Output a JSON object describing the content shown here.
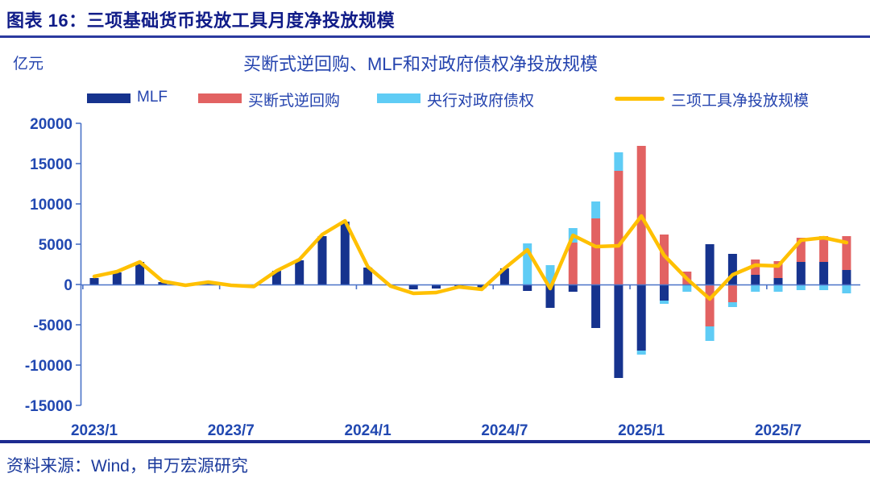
{
  "figure": {
    "title": "图表 16：三项基础货币投放工具月度净投放规模"
  },
  "source": {
    "text": "资料来源：Wind，申万宏源研究"
  },
  "chart_data": {
    "type": "bar",
    "subtype": "stacked-bars-with-line-overlay",
    "title": "买断式逆回购、MLF和对政府债权净投放规模",
    "unit_label": "亿元",
    "xlabel": "",
    "ylabel": "亿元",
    "ylim": [
      -15000,
      20000
    ],
    "grid": false,
    "legend_position": "top",
    "y_tick_labels": [
      "20000",
      "15000",
      "10000",
      "5000",
      "0",
      "-5000",
      "-10000",
      "-15000"
    ],
    "y_tick_values": [
      20000,
      15000,
      10000,
      5000,
      0,
      -5000,
      -10000,
      -15000
    ],
    "x_tick_labels": [
      "2023/1",
      "2023/7",
      "2024/1",
      "2024/7",
      "2025/1",
      "2025/7"
    ],
    "categories": [
      "2023/1",
      "2023/2",
      "2023/3",
      "2023/4",
      "2023/5",
      "2023/6",
      "2023/7",
      "2023/8",
      "2023/9",
      "2023/10",
      "2023/11",
      "2023/12",
      "2024/1",
      "2024/2",
      "2024/3",
      "2024/4",
      "2024/5",
      "2024/6",
      "2024/7",
      "2024/8",
      "2024/9",
      "2024/10",
      "2024/11",
      "2024/12",
      "2025/1",
      "2025/2",
      "2025/3",
      "2025/4",
      "2025/5",
      "2025/6",
      "2025/7",
      "2025/8",
      "2025/9",
      "2025/10"
    ],
    "series": [
      {
        "name": "MLF",
        "type": "bar",
        "color": "#16338e",
        "values": [
          800,
          1500,
          2800,
          300,
          0,
          200,
          0,
          0,
          1700,
          3000,
          6000,
          7800,
          2100,
          0,
          -600,
          -500,
          -400,
          -450,
          2000,
          -800,
          -2900,
          -900,
          -5400,
          -11600,
          -8200,
          -2000,
          0,
          5000,
          3800,
          1200,
          800,
          2800,
          2800,
          1800
        ]
      },
      {
        "name": "买断式逆回购",
        "type": "bar",
        "color": "#e26262",
        "values": [
          0,
          0,
          0,
          0,
          0,
          0,
          0,
          0,
          0,
          0,
          0,
          0,
          0,
          0,
          0,
          0,
          0,
          0,
          0,
          0,
          0,
          5200,
          8200,
          14100,
          17200,
          6200,
          1600,
          -5200,
          -2200,
          1900,
          2100,
          3000,
          3200,
          4200
        ]
      },
      {
        "name": "央行对政府债权",
        "type": "bar",
        "color": "#5fccf5",
        "values": [
          0,
          0,
          0,
          0,
          0,
          0,
          0,
          0,
          0,
          0,
          0,
          0,
          0,
          0,
          0,
          0,
          0,
          0,
          0,
          5100,
          2400,
          1800,
          2100,
          2300,
          -500,
          -400,
          -900,
          -1800,
          -600,
          -900,
          -900,
          -700,
          -700,
          -1100
        ]
      },
      {
        "name": "三项工具净投放规模",
        "type": "line",
        "color": "#ffc000",
        "values": [
          1000,
          1600,
          2800,
          400,
          -100,
          300,
          -100,
          -250,
          1700,
          3100,
          6200,
          7900,
          2200,
          -200,
          -1100,
          -1000,
          -300,
          -600,
          2000,
          4300,
          -500,
          6100,
          4700,
          4800,
          8500,
          3600,
          700,
          -1800,
          1200,
          2400,
          2300,
          5500,
          5800,
          5200
        ]
      }
    ],
    "axis_color": "#4a72c8"
  }
}
